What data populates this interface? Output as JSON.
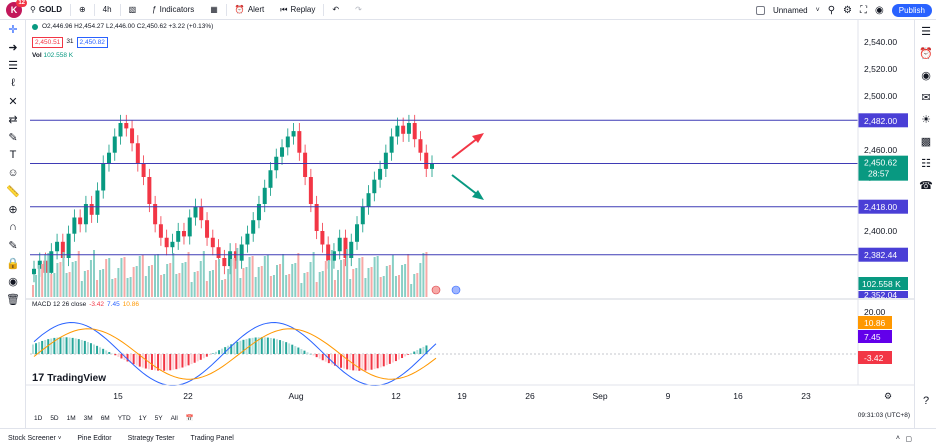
{
  "topbar": {
    "logo_letter": "K",
    "logo_badge": "12",
    "symbol": "GOLD",
    "interval": "4h",
    "indicators_label": "Indicators",
    "alert_label": "Alert",
    "replay_label": "Replay",
    "layout_name": "Unnamed",
    "publish_label": "Publish"
  },
  "legend": {
    "ohlc": "O2,446.96 H2,454.27 L2,446.00 C2,450.62 +3.22 (+0.13%)",
    "sell_price": "2,450.51",
    "spread": "31",
    "buy_price": "2,450.82",
    "vol_label": "Vol",
    "vol_value": "102.558 K",
    "macd_label": "MACD 12 26 close",
    "macd_hist": "-3.42",
    "macd_line": "7.45",
    "macd_signal": "10.86"
  },
  "price_axis": {
    "ticks": [
      "2,540.00",
      "2,520.00",
      "2,500.00",
      "2,460.00",
      "2,440.00",
      "2,400.00"
    ],
    "levels": [
      "2,482.00",
      "2,450.00",
      "2,418.00",
      "2,382.44"
    ],
    "current_price": "2,450.62",
    "countdown": "28:57",
    "volume_tag": "102.558 K",
    "hidden_tag": "2,352.04",
    "macd_ticks": [
      "20.00",
      "0.00"
    ],
    "macd_tags": [
      "10.86",
      "7.45",
      "-3.42"
    ]
  },
  "time_axis": [
    "15",
    "22",
    "Aug",
    "12",
    "19",
    "26",
    "Sep",
    "9",
    "16",
    "23"
  ],
  "ranges": [
    "1D",
    "5D",
    "1M",
    "3M",
    "6M",
    "YTD",
    "1Y",
    "5Y",
    "All"
  ],
  "clock": "09:31:03 (UTC+8)",
  "footer": {
    "tabs": [
      "Stock Screener",
      "Pine Editor",
      "Strategy Tester",
      "Trading Panel"
    ]
  },
  "brand": "TradingView",
  "colors": {
    "up": "#089981",
    "down": "#f23645",
    "level_line": "#3f3bb5",
    "level_tag": "#4a3fd6",
    "macd_line": "#2962ff",
    "signal_line": "#ff9800",
    "arrow_up": "#f23645",
    "arrow_down": "#089981"
  },
  "chart_data": {
    "type": "candlestick",
    "horizontal_levels": [
      2482.0,
      2450.0,
      2418.0,
      2382.44
    ],
    "current_price": 2450.62,
    "ylim": [
      2350,
      2550
    ],
    "candles_close": [
      2372,
      2378,
      2369,
      2385,
      2392,
      2380,
      2398,
      2410,
      2405,
      2420,
      2412,
      2430,
      2450,
      2458,
      2470,
      2480,
      2476,
      2465,
      2450,
      2440,
      2420,
      2405,
      2395,
      2388,
      2392,
      2400,
      2396,
      2410,
      2418,
      2408,
      2395,
      2388,
      2380,
      2374,
      2385,
      2378,
      2390,
      2398,
      2408,
      2420,
      2432,
      2445,
      2455,
      2462,
      2470,
      2474,
      2458,
      2440,
      2420,
      2400,
      2390,
      2378,
      2385,
      2395,
      2380,
      2392,
      2405,
      2418,
      2428,
      2438,
      2446,
      2458,
      2470,
      2478,
      2472,
      2480,
      2468,
      2458,
      2446,
      2450
    ],
    "macd_line": 7.45,
    "macd_signal": 10.86,
    "macd_histogram": -3.42
  }
}
